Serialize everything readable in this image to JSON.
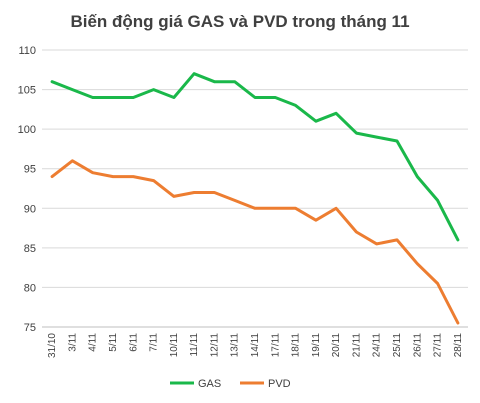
{
  "chart_data": {
    "type": "line",
    "title": "Biến động giá GAS và PVD trong tháng 11",
    "xlabel": "",
    "ylabel": "",
    "categories": [
      "31/10",
      "3/11",
      "4/11",
      "5/11",
      "6/11",
      "7/11",
      "10/11",
      "11/11",
      "12/11",
      "13/11",
      "14/11",
      "17/11",
      "18/11",
      "19/11",
      "20/11",
      "21/11",
      "24/11",
      "25/11",
      "26/11",
      "27/11",
      "28/11"
    ],
    "ylim": [
      75,
      110
    ],
    "yticks": [
      75,
      80,
      85,
      90,
      95,
      100,
      105,
      110
    ],
    "grid": true,
    "legend_position": "bottom",
    "series": [
      {
        "name": "GAS",
        "color": "#1ab84a",
        "values": [
          106,
          105,
          104,
          104,
          104,
          105,
          104,
          107,
          106,
          106,
          104,
          104,
          103,
          101,
          102,
          99.5,
          99,
          98.5,
          94,
          91,
          86
        ]
      },
      {
        "name": "PVD",
        "color": "#ed7d31",
        "values": [
          94,
          96,
          94.5,
          94,
          94,
          93.5,
          91.5,
          92,
          92,
          91,
          90,
          90,
          90,
          88.5,
          90,
          87,
          85.5,
          86,
          83,
          80.5,
          75.5
        ]
      }
    ]
  }
}
